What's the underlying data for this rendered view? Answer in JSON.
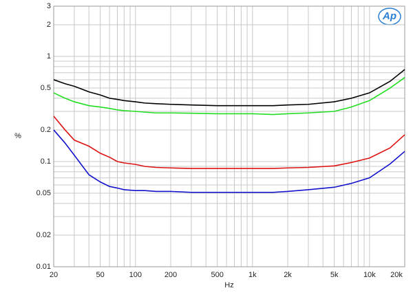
{
  "chart_data": {
    "type": "line",
    "x_label": "Hz",
    "y_label": "%",
    "logo_text": "Ap",
    "x": [
      20,
      25,
      30,
      40,
      50,
      60,
      70,
      80,
      100,
      120,
      150,
      200,
      300,
      500,
      700,
      1000,
      1500,
      2000,
      3000,
      5000,
      7000,
      10000,
      15000,
      20000
    ],
    "series": [
      {
        "color": "#000000",
        "values": [
          0.6,
          0.55,
          0.52,
          0.46,
          0.43,
          0.4,
          0.39,
          0.38,
          0.37,
          0.36,
          0.355,
          0.35,
          0.345,
          0.34,
          0.34,
          0.34,
          0.34,
          0.345,
          0.35,
          0.37,
          0.4,
          0.45,
          0.58,
          0.75
        ]
      },
      {
        "color": "#22dd22",
        "values": [
          0.45,
          0.4,
          0.37,
          0.34,
          0.33,
          0.32,
          0.31,
          0.305,
          0.3,
          0.295,
          0.29,
          0.29,
          0.288,
          0.285,
          0.285,
          0.285,
          0.28,
          0.285,
          0.29,
          0.3,
          0.33,
          0.38,
          0.5,
          0.63
        ]
      },
      {
        "color": "#dd1111",
        "values": [
          0.27,
          0.2,
          0.16,
          0.14,
          0.12,
          0.11,
          0.1,
          0.097,
          0.094,
          0.09,
          0.088,
          0.087,
          0.086,
          0.086,
          0.086,
          0.086,
          0.086,
          0.087,
          0.088,
          0.091,
          0.098,
          0.108,
          0.135,
          0.18
        ]
      },
      {
        "color": "#1111cc",
        "values": [
          0.2,
          0.15,
          0.115,
          0.075,
          0.064,
          0.058,
          0.056,
          0.054,
          0.053,
          0.053,
          0.052,
          0.052,
          0.051,
          0.051,
          0.051,
          0.051,
          0.051,
          0.052,
          0.054,
          0.057,
          0.062,
          0.07,
          0.095,
          0.125
        ]
      }
    ],
    "x_log": true,
    "y_log": true,
    "grid": true,
    "xlim": [
      20,
      20000
    ],
    "ylim": [
      0.01,
      3
    ],
    "xticks": [
      20,
      50,
      100,
      200,
      500,
      {
        "value": 1000,
        "label": "1k"
      },
      {
        "value": 2000,
        "label": "2k"
      },
      {
        "value": 5000,
        "label": "5k"
      },
      {
        "value": 10000,
        "label": "10k"
      },
      {
        "value": 20000,
        "label": "20k"
      }
    ],
    "yticks": [
      3,
      2,
      1,
      0.5,
      0.2,
      0.1,
      0.05,
      0.02,
      0.01
    ],
    "x_minor_ticks": [
      30,
      40,
      60,
      70,
      80,
      90,
      300,
      400,
      600,
      700,
      800,
      900,
      3000,
      4000,
      6000,
      7000,
      8000,
      9000
    ],
    "y_minor_ticks": [
      0.03,
      0.04,
      0.06,
      0.07,
      0.08,
      0.09,
      0.3,
      0.4,
      0.6,
      0.7,
      0.8,
      0.9
    ]
  }
}
